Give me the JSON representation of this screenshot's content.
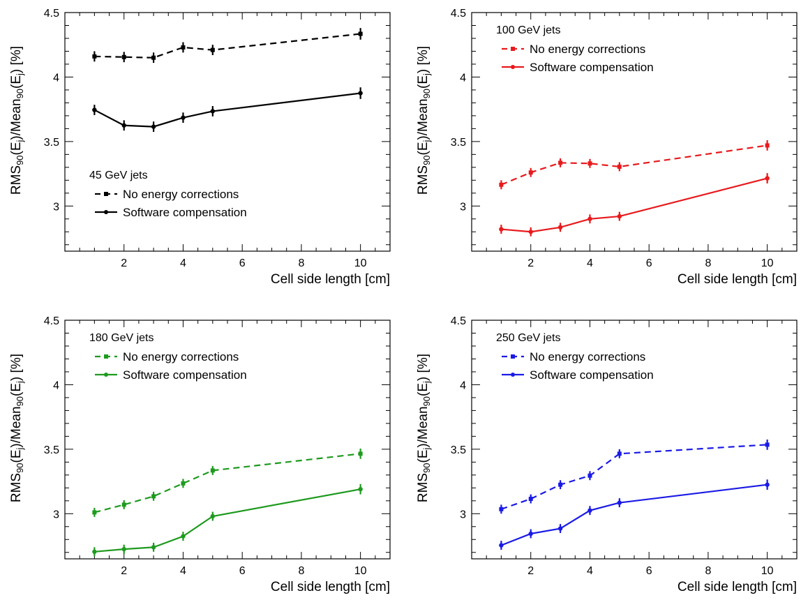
{
  "chart_data": [
    {
      "type": "line",
      "title": "45 GeV jets",
      "xlabel": "Cell side length [cm]",
      "ylabel": {
        "base": "RMS",
        "sub1": "90",
        "mid1": "(E",
        "sub2": "j",
        "mid2": ")/Mean",
        "sub3": "90",
        "mid3": "(E",
        "sub4": "j",
        "end": ") [%]"
      },
      "xlim": [
        0,
        11
      ],
      "ylim": [
        2.65,
        4.5
      ],
      "xticks": [
        2,
        4,
        6,
        8,
        10
      ],
      "yticks": [
        3,
        3.5,
        4,
        4.5
      ],
      "color": "#000000",
      "x": [
        1,
        2,
        3,
        4,
        5,
        10
      ],
      "series": [
        {
          "name": "No energy corrections",
          "style": "dashed",
          "marker": "square",
          "values": [
            4.16,
            4.155,
            4.15,
            4.23,
            4.21,
            4.335
          ],
          "errors": [
            0.04,
            0.04,
            0.04,
            0.04,
            0.04,
            0.045
          ]
        },
        {
          "name": "Software compensation",
          "style": "solid",
          "marker": "circle",
          "values": [
            3.745,
            3.625,
            3.615,
            3.685,
            3.735,
            3.875
          ],
          "errors": [
            0.04,
            0.04,
            0.04,
            0.04,
            0.04,
            0.045
          ]
        }
      ],
      "legend": "bottom-left"
    },
    {
      "type": "line",
      "title": "100 GeV jets",
      "xlabel": "Cell side length [cm]",
      "ylabel": {
        "base": "RMS",
        "sub1": "90",
        "mid1": "(E",
        "sub2": "j",
        "mid2": ")/Mean",
        "sub3": "90",
        "mid3": "(E",
        "sub4": "j",
        "end": ") [%]"
      },
      "xlim": [
        0,
        11
      ],
      "ylim": [
        2.65,
        4.5
      ],
      "xticks": [
        2,
        4,
        6,
        8,
        10
      ],
      "yticks": [
        3,
        3.5,
        4,
        4.5
      ],
      "color": "#e8191c",
      "x": [
        1,
        2,
        3,
        4,
        5,
        10
      ],
      "series": [
        {
          "name": "No energy corrections",
          "style": "dashed",
          "marker": "square",
          "values": [
            3.165,
            3.26,
            3.335,
            3.33,
            3.305,
            3.47
          ],
          "errors": [
            0.035,
            0.035,
            0.035,
            0.035,
            0.035,
            0.04
          ]
        },
        {
          "name": "Software compensation",
          "style": "solid",
          "marker": "circle",
          "values": [
            2.82,
            2.8,
            2.835,
            2.9,
            2.92,
            3.215
          ],
          "errors": [
            0.035,
            0.035,
            0.035,
            0.035,
            0.035,
            0.04
          ]
        }
      ],
      "legend": "top-left"
    },
    {
      "type": "line",
      "title": "180 GeV jets",
      "xlabel": "Cell side length [cm]",
      "ylabel": {
        "base": "RMS",
        "sub1": "90",
        "mid1": "(E",
        "sub2": "j",
        "mid2": ")/Mean",
        "sub3": "90",
        "mid3": "(E",
        "sub4": "j",
        "end": ") [%]"
      },
      "xlim": [
        0,
        11
      ],
      "ylim": [
        2.65,
        4.5
      ],
      "xticks": [
        2,
        4,
        6,
        8,
        10
      ],
      "yticks": [
        3,
        3.5,
        4,
        4.5
      ],
      "color": "#1e9a1e",
      "x": [
        1,
        2,
        3,
        4,
        5,
        10
      ],
      "series": [
        {
          "name": "No energy corrections",
          "style": "dashed",
          "marker": "square",
          "values": [
            3.01,
            3.07,
            3.135,
            3.235,
            3.335,
            3.465
          ],
          "errors": [
            0.035,
            0.035,
            0.035,
            0.035,
            0.035,
            0.04
          ]
        },
        {
          "name": "Software compensation",
          "style": "solid",
          "marker": "circle",
          "values": [
            2.705,
            2.725,
            2.74,
            2.825,
            2.98,
            3.19
          ],
          "errors": [
            0.035,
            0.035,
            0.035,
            0.035,
            0.035,
            0.04
          ]
        }
      ],
      "legend": "top-left"
    },
    {
      "type": "line",
      "title": "250 GeV jets",
      "xlabel": "Cell side length [cm]",
      "ylabel": {
        "base": "RMS",
        "sub1": "90",
        "mid1": "(E",
        "sub2": "j",
        "mid2": ")/Mean",
        "sub3": "90",
        "mid3": "(E",
        "sub4": "j",
        "end": ") [%]"
      },
      "xlim": [
        0,
        11
      ],
      "ylim": [
        2.65,
        4.5
      ],
      "xticks": [
        2,
        4,
        6,
        8,
        10
      ],
      "yticks": [
        3,
        3.5,
        4,
        4.5
      ],
      "color": "#1a1ae6",
      "x": [
        1,
        2,
        3,
        4,
        5,
        10
      ],
      "series": [
        {
          "name": "No energy corrections",
          "style": "dashed",
          "marker": "square",
          "values": [
            3.035,
            3.115,
            3.225,
            3.295,
            3.465,
            3.535
          ],
          "errors": [
            0.035,
            0.035,
            0.035,
            0.035,
            0.035,
            0.04
          ]
        },
        {
          "name": "Software compensation",
          "style": "solid",
          "marker": "circle",
          "values": [
            2.755,
            2.845,
            2.885,
            3.025,
            3.085,
            3.225
          ],
          "errors": [
            0.035,
            0.035,
            0.035,
            0.035,
            0.035,
            0.04
          ]
        }
      ],
      "legend": "top-left"
    }
  ]
}
